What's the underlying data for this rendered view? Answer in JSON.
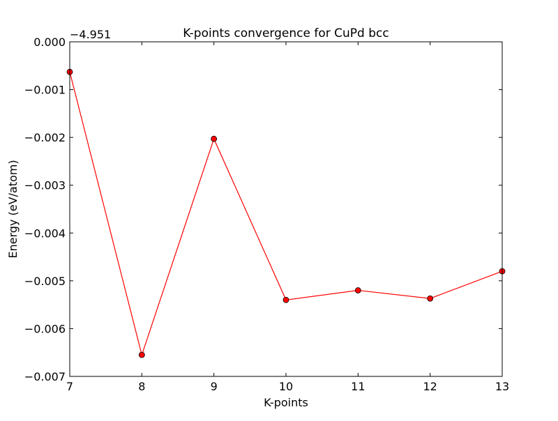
{
  "chart_data": {
    "type": "line",
    "title": "K-points convergence for CuPd bcc",
    "xlabel": "K-points",
    "ylabel": "Energy (eV/atom)",
    "y_offset_label": "−4.951",
    "x": [
      7,
      8,
      9,
      10,
      11,
      12,
      13
    ],
    "series": [
      {
        "values": [
          -0.00063,
          -0.00655,
          -0.00203,
          -0.0054,
          -0.0052,
          -0.00537,
          -0.0048
        ],
        "color": "#ff0000",
        "marker": "circle"
      }
    ],
    "xlim": [
      7,
      13
    ],
    "ylim": [
      -0.007,
      0.0
    ],
    "xticks": [
      7,
      8,
      9,
      10,
      11,
      12,
      13
    ],
    "xtick_labels": [
      "7",
      "8",
      "9",
      "10",
      "11",
      "12",
      "13"
    ],
    "yticks": [
      0.0,
      -0.001,
      -0.002,
      -0.003,
      -0.004,
      -0.005,
      -0.006,
      -0.007
    ],
    "ytick_labels": [
      "0.000",
      "−0.001",
      "−0.002",
      "−0.003",
      "−0.004",
      "−0.005",
      "−0.006",
      "−0.007"
    ],
    "grid": false,
    "legend": false
  }
}
